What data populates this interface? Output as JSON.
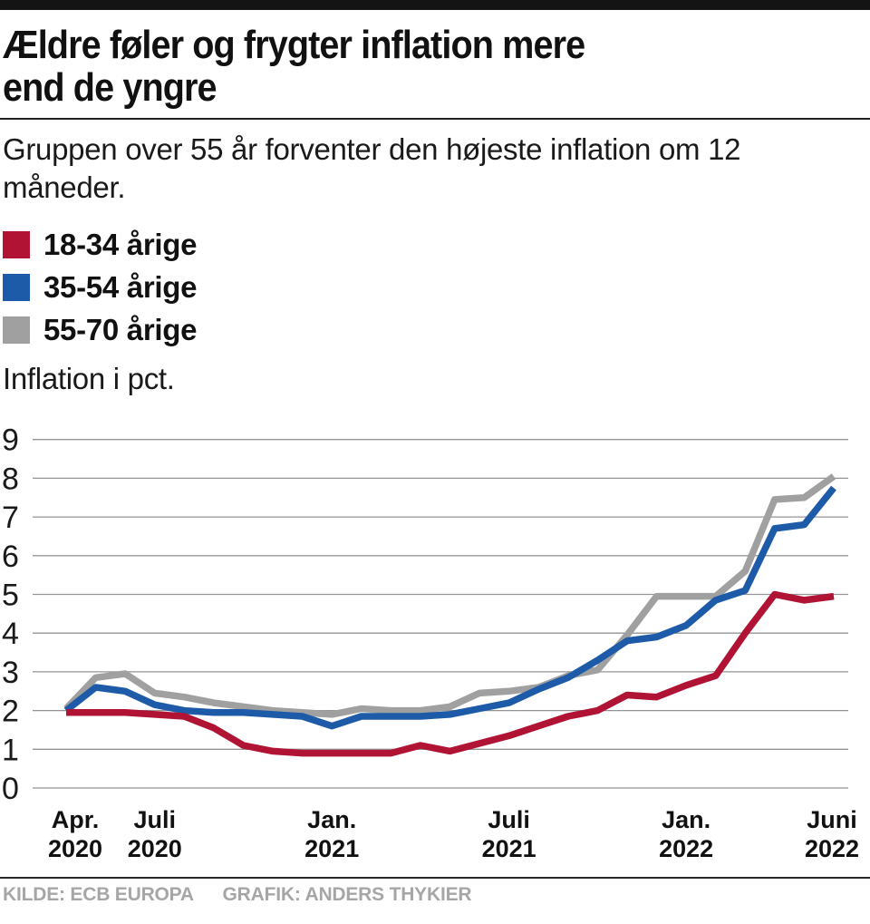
{
  "header": {
    "title_line1": "Ældre føler og frygter inflation mere",
    "title_line2": "end de yngre",
    "subtitle": "Gruppen over 55 år forventer den højeste inflation om 12 måneder."
  },
  "legend": {
    "items": [
      {
        "label": "18-34 årige",
        "color": "#b01334"
      },
      {
        "label": "35-54 årige",
        "color": "#1d5ba9"
      },
      {
        "label": "55-70 årige",
        "color": "#a0a0a0"
      }
    ]
  },
  "chart_data": {
    "type": "line",
    "axis_label": "Inflation i pct.",
    "ylim": [
      0,
      9
    ],
    "yticks": [
      0,
      1,
      2,
      3,
      4,
      5,
      6,
      7,
      8,
      9
    ],
    "grid": true,
    "x_start": "Apr. 2020",
    "x_end": "Juni 2022",
    "n_points": 27,
    "xticks": [
      {
        "month": 0,
        "line1": "Apr.",
        "line2": "2020"
      },
      {
        "month": 3,
        "line1": "Juli",
        "line2": "2020"
      },
      {
        "month": 9,
        "line1": "Jan.",
        "line2": "2021"
      },
      {
        "month": 15,
        "line1": "Juli",
        "line2": "2021"
      },
      {
        "month": 21,
        "line1": "Jan.",
        "line2": "2022"
      },
      {
        "month": 26,
        "line1": "Juni",
        "line2": "2022"
      }
    ],
    "series": [
      {
        "name": "18-34 årige",
        "color": "#b01334",
        "values": [
          1.95,
          1.95,
          1.95,
          1.9,
          1.85,
          1.55,
          1.1,
          0.95,
          0.9,
          0.9,
          0.9,
          0.9,
          1.1,
          0.95,
          1.15,
          1.35,
          1.6,
          1.85,
          2.0,
          2.4,
          2.35,
          2.65,
          2.9,
          4.0,
          5.0,
          4.85,
          4.95
        ]
      },
      {
        "name": "35-54 årige",
        "color": "#1d5ba9",
        "values": [
          2.0,
          2.6,
          2.5,
          2.15,
          2.0,
          1.95,
          1.95,
          1.9,
          1.85,
          1.6,
          1.85,
          1.85,
          1.85,
          1.9,
          2.05,
          2.2,
          2.55,
          2.85,
          3.3,
          3.8,
          3.9,
          4.2,
          4.85,
          5.1,
          6.7,
          6.8,
          7.75
        ]
      },
      {
        "name": "55-70 årige",
        "color": "#a0a0a0",
        "values": [
          2.05,
          2.85,
          2.95,
          2.45,
          2.35,
          2.2,
          2.1,
          2.0,
          1.95,
          1.9,
          2.05,
          2.0,
          2.0,
          2.1,
          2.45,
          2.5,
          2.6,
          2.9,
          3.05,
          3.95,
          4.95,
          4.95,
          4.95,
          5.6,
          7.45,
          7.5,
          8.05
        ]
      }
    ]
  },
  "footer": {
    "source": "KILDE: ECB EUROPA",
    "credit": "GRAFIK: ANDERS THYKIER"
  }
}
